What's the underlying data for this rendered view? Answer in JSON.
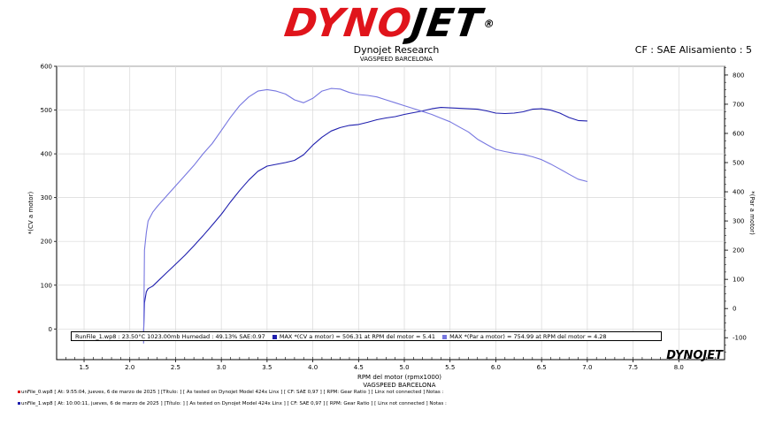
{
  "header": {
    "logo_dyno": "DYNO",
    "logo_jet": "JET",
    "logo_reg": "®",
    "title": "Dynojet Research",
    "subtitle": "VAGSPEED BARCELONA",
    "cf_label": "CF : SAE Alisamiento : 5"
  },
  "legend": {
    "runfile": "RunFile_1.wp8",
    "conditions": ": 23.50°C 1023.00mb  Humedad : 49.13%  SAE:0.97",
    "max_power": "MAX  *(CV a motor) = 506.31 at  RPM del motor  = 5.41",
    "max_torque": "MAX  *(Par a motor) = 754.99 at  RPM del motor  = 4.28",
    "power_color": "#1f1fae",
    "torque_color": "#7777e0"
  },
  "corner_logo": {
    "text": "DYNOJET"
  },
  "footer": {
    "run0": "unFile_0.wp8 [ At: 9:55:04, jueves, 6 de marzo de 2025 ] [Título: ]  [ As tested on Dynojet Model 424x Linx ] [ CF: SAE 0,97 ] [ RPM: Gear Ratio ] [ Linx not connected ] Notas :",
    "run1": "unFile_1.wp8 [ At: 10:00:11, jueves, 6 de marzo de 2025 ] [Título: ]  [ As tested on Dynojet Model 424x Linx ] [ CF: SAE 0,97 ] [ RPM: Gear Ratio ] [ Linx not connected ] Notas :",
    "run0_color": "#e0141b",
    "run1_color": "#1f1fae"
  },
  "chart_data": {
    "type": "line",
    "xlabel": "RPM del motor  (rpmx1000)",
    "xlabel2": "VAGSPEED BARCELONA",
    "ylabel_left": "*(CV a motor)",
    "ylabel_right": "*(Par a motor)",
    "xlim": [
      1.2,
      8.5
    ],
    "ylim_left": [
      -70,
      600
    ],
    "ylim_right": [
      -175,
      830
    ],
    "x_ticks": [
      1.5,
      2.0,
      2.5,
      3.0,
      3.5,
      4.0,
      4.5,
      5.0,
      5.5,
      6.0,
      6.5,
      7.0,
      7.5,
      8.0
    ],
    "x_tick_labels": [
      "1.5",
      "2.0",
      "2.5",
      "3.0",
      "3.5",
      "4.0",
      "4.5",
      "5.0",
      "5.5",
      "6.0",
      "6.5",
      "7.0",
      "7.5",
      "8.0"
    ],
    "y_left_ticks": [
      0,
      100,
      200,
      300,
      400,
      500,
      600
    ],
    "y_right_ticks": [
      -100,
      0,
      100,
      200,
      300,
      400,
      500,
      600,
      700,
      800
    ],
    "series": [
      {
        "name": "*(CV a motor)",
        "axis": "left",
        "color": "#1f1fae",
        "x": [
          2.15,
          2.16,
          2.18,
          2.2,
          2.25,
          2.3,
          2.4,
          2.5,
          2.6,
          2.7,
          2.8,
          2.9,
          3.0,
          3.1,
          3.2,
          3.3,
          3.4,
          3.5,
          3.6,
          3.7,
          3.8,
          3.9,
          4.0,
          4.1,
          4.2,
          4.3,
          4.4,
          4.5,
          4.6,
          4.7,
          4.8,
          4.9,
          5.0,
          5.1,
          5.2,
          5.3,
          5.4,
          5.5,
          5.6,
          5.7,
          5.8,
          5.9,
          6.0,
          6.1,
          6.2,
          6.3,
          6.4,
          6.5,
          6.6,
          6.7,
          6.8,
          6.9,
          7.0
        ],
        "values": [
          -10,
          60,
          85,
          92,
          98,
          108,
          128,
          148,
          168,
          190,
          213,
          237,
          262,
          290,
          316,
          340,
          360,
          372,
          376,
          380,
          385,
          398,
          420,
          438,
          452,
          460,
          465,
          467,
          472,
          478,
          482,
          485,
          490,
          494,
          498,
          503,
          506,
          505,
          504,
          503,
          502,
          498,
          493,
          492,
          493,
          496,
          502,
          503,
          500,
          493,
          483,
          476,
          475
        ]
      },
      {
        "name": "*(Par a motor)",
        "axis": "right",
        "color": "#7777e0",
        "x": [
          2.15,
          2.16,
          2.18,
          2.2,
          2.25,
          2.3,
          2.4,
          2.5,
          2.6,
          2.7,
          2.8,
          2.9,
          3.0,
          3.1,
          3.2,
          3.3,
          3.4,
          3.5,
          3.6,
          3.7,
          3.8,
          3.9,
          4.0,
          4.1,
          4.2,
          4.3,
          4.4,
          4.5,
          4.6,
          4.7,
          4.8,
          4.9,
          5.0,
          5.1,
          5.2,
          5.3,
          5.4,
          5.5,
          5.6,
          5.7,
          5.8,
          5.9,
          6.0,
          6.1,
          6.2,
          6.3,
          6.4,
          6.5,
          6.6,
          6.7,
          6.8,
          6.9,
          7.0
        ],
        "values": [
          -120,
          200,
          260,
          300,
          330,
          350,
          385,
          420,
          455,
          490,
          530,
          565,
          610,
          655,
          695,
          725,
          745,
          750,
          745,
          735,
          715,
          705,
          720,
          745,
          754,
          752,
          740,
          733,
          730,
          725,
          715,
          705,
          695,
          685,
          675,
          665,
          652,
          640,
          622,
          605,
          580,
          562,
          545,
          538,
          532,
          528,
          520,
          510,
          495,
          478,
          460,
          443,
          435
        ]
      }
    ]
  }
}
